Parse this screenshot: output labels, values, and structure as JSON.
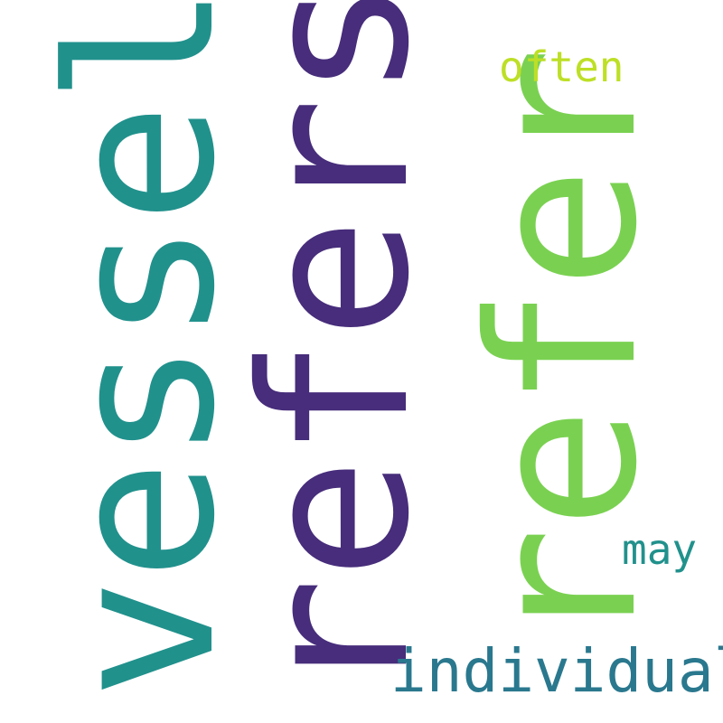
{
  "cloud": {
    "words": [
      {
        "text": "vessel",
        "color": "#21918c",
        "orientation": "vertical"
      },
      {
        "text": "refers",
        "color": "#472d7b",
        "orientation": "vertical"
      },
      {
        "text": "refer",
        "color": "#7ad151",
        "orientation": "vertical"
      },
      {
        "text": "often",
        "color": "#bddf26",
        "orientation": "horizontal"
      },
      {
        "text": "may",
        "color": "#21918c",
        "orientation": "horizontal"
      },
      {
        "text": "individual",
        "color": "#2a788e",
        "orientation": "horizontal"
      }
    ]
  }
}
